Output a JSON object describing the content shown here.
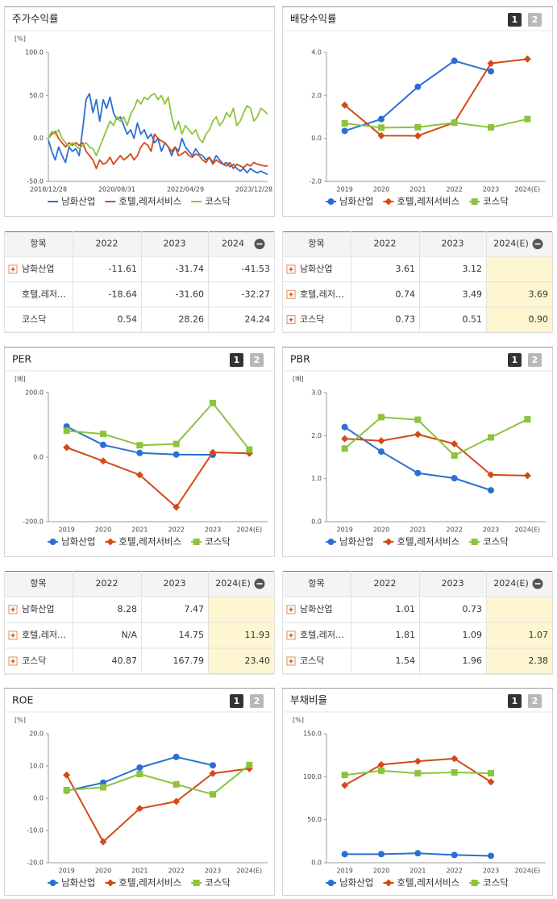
{
  "chart_data": [
    {
      "type": "line",
      "title": "주가수익률",
      "unit": "[%]",
      "categories": [
        "2018/12/28",
        null,
        null,
        null,
        null,
        null,
        null,
        null,
        null,
        null,
        null,
        null,
        null,
        null,
        null,
        null,
        null,
        null,
        null,
        null,
        "2020/08/31",
        null,
        null,
        null,
        null,
        null,
        null,
        null,
        null,
        null,
        null,
        null,
        null,
        null,
        null,
        null,
        null,
        null,
        null,
        null,
        "2022/04/29",
        null,
        null,
        null,
        null,
        null,
        null,
        null,
        null,
        null,
        null,
        null,
        null,
        null,
        null,
        null,
        null,
        null,
        null,
        null,
        "2023/12/28",
        null,
        null,
        null,
        null
      ],
      "series": [
        {
          "name": "남화산업",
          "color": "#2a6fd1",
          "values": [
            -2,
            -15,
            -25,
            -10,
            -20,
            -28,
            -10,
            -15,
            -12,
            -20,
            10,
            45,
            52,
            30,
            45,
            20,
            45,
            35,
            48,
            30,
            22,
            25,
            15,
            5,
            10,
            0,
            18,
            5,
            10,
            0,
            5,
            -5,
            0,
            -15,
            -5,
            -10,
            -20,
            -10,
            -15,
            0,
            -10,
            -15,
            -20,
            -12,
            -18,
            -20,
            -25,
            -22,
            -28,
            -20,
            -25,
            -30,
            -28,
            -33,
            -30,
            -35,
            -38,
            -35,
            -40,
            -35,
            -38,
            -40,
            -38,
            -40,
            -42
          ]
        },
        {
          "name": "호텔,레저서비스",
          "color": "#d24a17",
          "values": [
            0,
            5,
            8,
            0,
            -5,
            -10,
            -5,
            -8,
            -5,
            -8,
            -5,
            -15,
            -20,
            -25,
            -35,
            -25,
            -30,
            -28,
            -22,
            -30,
            -25,
            -20,
            -25,
            -22,
            -18,
            -25,
            -20,
            -10,
            -5,
            -8,
            -15,
            5,
            0,
            -3,
            -5,
            -10,
            -15,
            -10,
            -20,
            -18,
            -15,
            -20,
            -22,
            -18,
            -20,
            -25,
            -28,
            -22,
            -30,
            -25,
            -28,
            -30,
            -32,
            -28,
            -35,
            -30,
            -32,
            -34,
            -30,
            -32,
            -28,
            -30,
            -31,
            -32,
            -32
          ]
        },
        {
          "name": "코스닥",
          "color": "#8cc43c",
          "values": [
            0,
            8,
            5,
            10,
            0,
            -5,
            -10,
            -5,
            -8,
            -12,
            -8,
            -5,
            -10,
            -12,
            -20,
            -10,
            0,
            10,
            20,
            15,
            25,
            20,
            25,
            15,
            28,
            35,
            45,
            40,
            48,
            45,
            50,
            52,
            45,
            50,
            40,
            48,
            25,
            10,
            20,
            5,
            15,
            10,
            5,
            10,
            0,
            -5,
            5,
            10,
            20,
            25,
            15,
            20,
            30,
            25,
            35,
            15,
            20,
            30,
            38,
            35,
            20,
            25,
            35,
            32,
            28
          ]
        }
      ],
      "ylim": [
        -50,
        100
      ],
      "yticks": [
        {
          "value": -50,
          "label": "-50.0"
        },
        {
          "value": 0,
          "label": "0.0"
        },
        {
          "value": 50,
          "label": "50.0"
        },
        {
          "value": 100,
          "label": "100.0"
        }
      ]
    },
    {
      "type": "line",
      "title": "배당수익률",
      "buttons": [
        "1",
        "2"
      ],
      "categories": [
        "2019",
        "2020",
        "2021",
        "2022",
        "2023",
        "2024(E)"
      ],
      "series": [
        {
          "name": "남화산업",
          "color": "#2a6fd1",
          "marker": "circle",
          "values": [
            0.35,
            0.9,
            2.4,
            3.61,
            3.12,
            null
          ]
        },
        {
          "name": "호텔,레저서비스",
          "color": "#d24a17",
          "marker": "diamond",
          "values": [
            1.55,
            0.13,
            0.12,
            0.74,
            3.49,
            3.69
          ]
        },
        {
          "name": "코스닥",
          "color": "#8cc43c",
          "marker": "square",
          "values": [
            0.7,
            0.5,
            0.52,
            0.73,
            0.51,
            0.9
          ]
        }
      ],
      "ylim": [
        -2,
        4
      ],
      "yticks": [
        {
          "value": -2,
          "label": "-2.0"
        },
        {
          "value": 0,
          "label": "0.0"
        },
        {
          "value": 2,
          "label": "2.0"
        },
        {
          "value": 4,
          "label": "4.0"
        }
      ]
    },
    {
      "type": "line",
      "title": "PER",
      "buttons": [
        "1",
        "2"
      ],
      "unit": "[배]",
      "categories": [
        "2019",
        "2020",
        "2021",
        "2022",
        "2023",
        "2024(E)"
      ],
      "series": [
        {
          "name": "남화산업",
          "color": "#2a6fd1",
          "marker": "circle",
          "values": [
            95,
            38,
            13,
            8.28,
            7.47,
            null
          ]
        },
        {
          "name": "호텔,레저서비스",
          "color": "#d24a17",
          "marker": "diamond",
          "values": [
            30,
            -12,
            -55,
            -155,
            14.75,
            11.93
          ]
        },
        {
          "name": "코스닥",
          "color": "#8cc43c",
          "marker": "square",
          "values": [
            82,
            72,
            37,
            40.87,
            167.79,
            23.4
          ]
        }
      ],
      "ylim": [
        -200,
        200
      ],
      "yticks": [
        {
          "value": -200,
          "label": "-200.0"
        },
        {
          "value": 0,
          "label": "0.0"
        },
        {
          "value": 200,
          "label": "200.0"
        }
      ]
    },
    {
      "type": "line",
      "title": "PBR",
      "buttons": [
        "1",
        "2"
      ],
      "unit": "[배]",
      "categories": [
        "2019",
        "2020",
        "2021",
        "2022",
        "2023",
        "2024(E)"
      ],
      "series": [
        {
          "name": "남화산업",
          "color": "#2a6fd1",
          "marker": "circle",
          "values": [
            2.2,
            1.63,
            1.13,
            1.01,
            0.73,
            null
          ]
        },
        {
          "name": "호텔,레저서비스",
          "color": "#d24a17",
          "marker": "diamond",
          "values": [
            1.93,
            1.88,
            2.03,
            1.81,
            1.09,
            1.07
          ]
        },
        {
          "name": "코스닥",
          "color": "#8cc43c",
          "marker": "square",
          "values": [
            1.7,
            2.43,
            2.37,
            1.54,
            1.96,
            2.38
          ]
        }
      ],
      "ylim": [
        0,
        3
      ],
      "yticks": [
        {
          "value": 0,
          "label": "0.0"
        },
        {
          "value": 1,
          "label": "1.0"
        },
        {
          "value": 2,
          "label": "2.0"
        },
        {
          "value": 3,
          "label": "3.0"
        }
      ]
    },
    {
      "type": "line",
      "title": "ROE",
      "buttons": [
        "1",
        "2"
      ],
      "unit": "[%]",
      "categories": [
        "2019",
        "2020",
        "2021",
        "2022",
        "2023",
        "2024(E)"
      ],
      "series": [
        {
          "name": "남화산업",
          "color": "#2a6fd1",
          "marker": "circle",
          "values": [
            2.3,
            4.8,
            9.5,
            12.8,
            10.2,
            null
          ]
        },
        {
          "name": "호텔,레저서비스",
          "color": "#d24a17",
          "marker": "diamond",
          "values": [
            7.2,
            -13.5,
            -3.2,
            -1,
            7.7,
            9.2
          ]
        },
        {
          "name": "코스닥",
          "color": "#8cc43c",
          "marker": "square",
          "values": [
            2.5,
            3.4,
            7.5,
            4.3,
            1.2,
            10.3
          ]
        }
      ],
      "ylim": [
        -20,
        20
      ],
      "yticks": [
        {
          "value": -20,
          "label": "-20.0"
        },
        {
          "value": -10,
          "label": "-10.0"
        },
        {
          "value": 0,
          "label": "0.0"
        },
        {
          "value": 10,
          "label": "10.0"
        },
        {
          "value": 20,
          "label": "20.0"
        }
      ]
    },
    {
      "type": "line",
      "title": "부채비율",
      "buttons": [
        "1",
        "2"
      ],
      "unit": "[%]",
      "categories": [
        "2019",
        "2020",
        "2021",
        "2022",
        "2023",
        "2024(E)"
      ],
      "series": [
        {
          "name": "남화산업",
          "color": "#2a6fd1",
          "marker": "circle",
          "values": [
            10,
            10,
            11,
            9,
            8,
            null
          ]
        },
        {
          "name": "호텔,레저서비스",
          "color": "#d24a17",
          "marker": "diamond",
          "values": [
            90,
            114,
            118,
            121,
            94,
            null
          ]
        },
        {
          "name": "코스닥",
          "color": "#8cc43c",
          "marker": "square",
          "values": [
            102,
            107,
            104,
            105,
            104,
            null
          ]
        }
      ],
      "ylim": [
        0,
        150
      ],
      "yticks": [
        {
          "value": 0,
          "label": "0.0"
        },
        {
          "value": 50,
          "label": "50.0"
        },
        {
          "value": 100,
          "label": "100.0"
        },
        {
          "value": 150,
          "label": "150.0"
        }
      ]
    }
  ],
  "tables": [
    {
      "header": [
        "항목",
        "2022",
        "2023",
        "2024"
      ],
      "highlight_last": false,
      "rows": [
        {
          "name": "남화산업",
          "icon": true,
          "cells": [
            "-11.61",
            "-31.74",
            "-41.53"
          ]
        },
        {
          "name": "호텔,레저…",
          "icon": false,
          "cells": [
            "-18.64",
            "-31.60",
            "-32.27"
          ]
        },
        {
          "name": "코스닥",
          "icon": false,
          "cells": [
            "0.54",
            "28.26",
            "24.24"
          ]
        }
      ]
    },
    {
      "header": [
        "항목",
        "2022",
        "2023",
        "2024(E)"
      ],
      "highlight_last": true,
      "rows": [
        {
          "name": "남화산업",
          "icon": true,
          "cells": [
            "3.61",
            "3.12",
            null
          ]
        },
        {
          "name": "호텔,레저…",
          "icon": true,
          "cells": [
            "0.74",
            "3.49",
            "3.69"
          ]
        },
        {
          "name": "코스닥",
          "icon": true,
          "cells": [
            "0.73",
            "0.51",
            "0.90"
          ]
        }
      ]
    },
    {
      "header": [
        "항목",
        "2022",
        "2023",
        "2024(E)"
      ],
      "highlight_last": true,
      "rows": [
        {
          "name": "남화산업",
          "icon": true,
          "cells": [
            "8.28",
            "7.47",
            null
          ]
        },
        {
          "name": "호텔,레저…",
          "icon": true,
          "cells": [
            "N/A",
            "14.75",
            "11.93"
          ]
        },
        {
          "name": "코스닥",
          "icon": true,
          "cells": [
            "40.87",
            "167.79",
            "23.40"
          ]
        }
      ]
    },
    {
      "header": [
        "항목",
        "2022",
        "2023",
        "2024(E)"
      ],
      "highlight_last": true,
      "rows": [
        {
          "name": "남화산업",
          "icon": true,
          "cells": [
            "1.01",
            "0.73",
            null
          ]
        },
        {
          "name": "호텔,레저…",
          "icon": true,
          "cells": [
            "1.81",
            "1.09",
            "1.07"
          ]
        },
        {
          "name": "코스닥",
          "icon": true,
          "cells": [
            "1.54",
            "1.96",
            "2.38"
          ]
        }
      ]
    }
  ]
}
